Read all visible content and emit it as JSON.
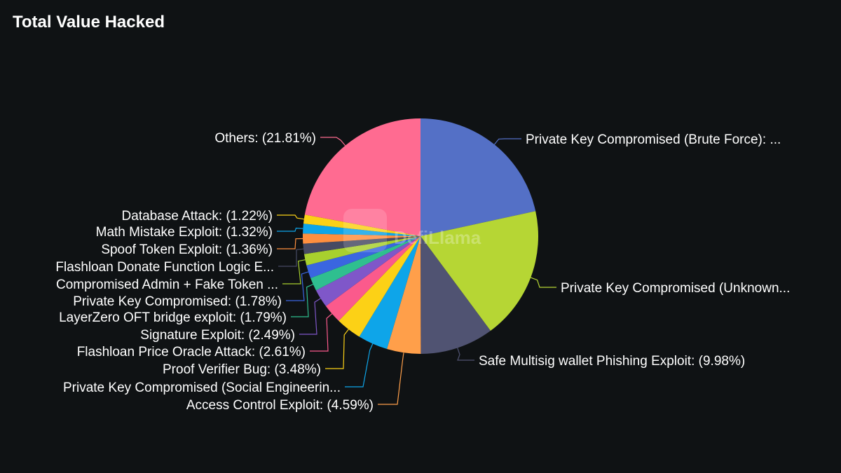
{
  "title": "Total Value Hacked",
  "watermark": "DefiLlama",
  "chart_data": {
    "type": "pie",
    "title": "Total Value Hacked",
    "slices": [
      {
        "label": "Private Key Compromised (Brute Force): ...",
        "value": 21.33,
        "color": "#5470c6"
      },
      {
        "label": "Private Key Compromised (Unknown...",
        "value": 18.06,
        "color": "#b6d634"
      },
      {
        "label": "Safe Multisig wallet Phishing Exploit: (9.98%)",
        "value": 9.98,
        "color": "#505372"
      },
      {
        "label": "Access Control Exploit: (4.59%)",
        "value": 4.59,
        "color": "#ff9f4a"
      },
      {
        "label": "Private Key Compromised (Social Engineerin...",
        "value": 4.05,
        "color": "#0ea5e9"
      },
      {
        "label": "Proof Verifier Bug: (3.48%)",
        "value": 3.48,
        "color": "#fcd116"
      },
      {
        "label": "Flashloan Price Oracle Attack: (2.61%)",
        "value": 2.61,
        "color": "#fb5a8c"
      },
      {
        "label": "Signature Exploit: (2.49%)",
        "value": 2.49,
        "color": "#7f57c9"
      },
      {
        "label": "LayerZero OFT bridge exploit: (1.79%)",
        "value": 1.79,
        "color": "#2fbf8f"
      },
      {
        "label": "Private Key Compromised: (1.78%)",
        "value": 1.78,
        "color": "#3a66e0"
      },
      {
        "label": "Compromised Admin + Fake Token ...",
        "value": 1.55,
        "color": "#a8d02e"
      },
      {
        "label": "Flashloan Donate Function Logic E...",
        "value": 1.4,
        "color": "#474a63"
      },
      {
        "label": "Spoof Token Exploit: (1.36%)",
        "value": 1.36,
        "color": "#ff8f3f"
      },
      {
        "label": "Math Mistake Exploit: (1.32%)",
        "value": 1.32,
        "color": "#0ea5e9"
      },
      {
        "label": "Database Attack: (1.22%)",
        "value": 1.22,
        "color": "#fcd116"
      },
      {
        "label": "Others: (21.81%)",
        "value": 21.81,
        "color": "#ff6b91"
      }
    ]
  }
}
